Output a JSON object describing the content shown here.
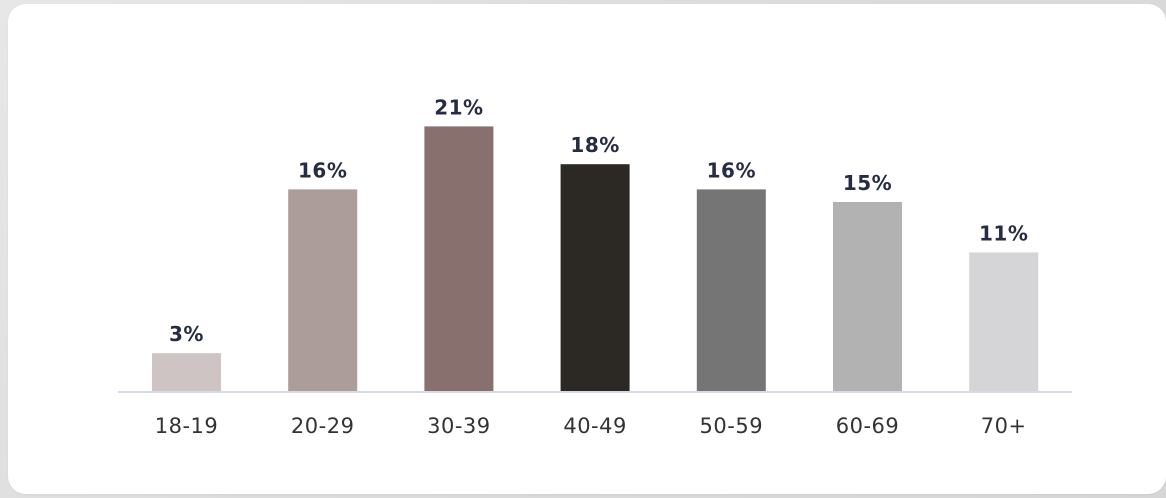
{
  "chart_data": {
    "type": "bar",
    "categories": [
      "18-19",
      "20-29",
      "30-39",
      "40-49",
      "50-59",
      "60-69",
      "70+"
    ],
    "values": [
      3,
      16,
      21,
      18,
      16,
      15,
      11
    ],
    "data_labels": [
      "3%",
      "16%",
      "21%",
      "18%",
      "16%",
      "15%",
      "11%"
    ],
    "bar_colors": [
      "#cdc4c3",
      "#ac9c9a",
      "#87706d",
      "#2c2925",
      "#757575",
      "#b2b2b2",
      "#d5d5d7"
    ],
    "title": "",
    "xlabel": "",
    "ylabel": "",
    "ylim": [
      0,
      25
    ],
    "grid": false,
    "legend": "none"
  },
  "colors": {
    "label_text": "#262c41",
    "category_text": "#333333",
    "axis_line": "#d7dbe8",
    "card_background": "#ffffff",
    "page_background": "#dedede"
  }
}
